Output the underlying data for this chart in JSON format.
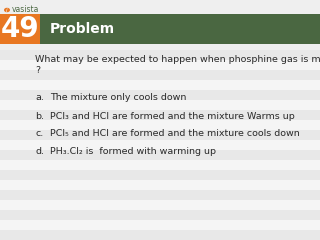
{
  "problem_number": "49",
  "header_text": "Problem",
  "question_line1": "What may be expected to happen when phosphine gas is mixed with chlorine gas",
  "question_line2": "?",
  "options": [
    {
      "label": "a.",
      "text": "The mixture only cools down"
    },
    {
      "label": "b.",
      "text": "PCl₃ and HCl are formed and the mixture Warms up"
    },
    {
      "label": "c.",
      "text": "PCl₅ and HCl are formed and the mixture cools down"
    },
    {
      "label": "d.",
      "text": "PH₃.Cl₂ is  formed with warming up"
    }
  ],
  "logo_text": "vasista",
  "number_box_color": "#E87722",
  "header_bg_color": "#4A6741",
  "header_text_color": "#FFFFFF",
  "number_text_color": "#FFFFFF",
  "question_text_color": "#2A2A2A",
  "option_text_color": "#2A2A2A",
  "bg_color": "#EFEFEF",
  "stripe_colors": [
    "#E8E8E8",
    "#F5F5F5"
  ],
  "header_font_size": 10,
  "number_font_size": 20,
  "question_font_size": 6.8,
  "option_font_size": 6.8,
  "logo_color_orange": "#E87722",
  "logo_color_green": "#4A6741",
  "fig_width": 3.2,
  "fig_height": 2.4,
  "dpi": 100
}
